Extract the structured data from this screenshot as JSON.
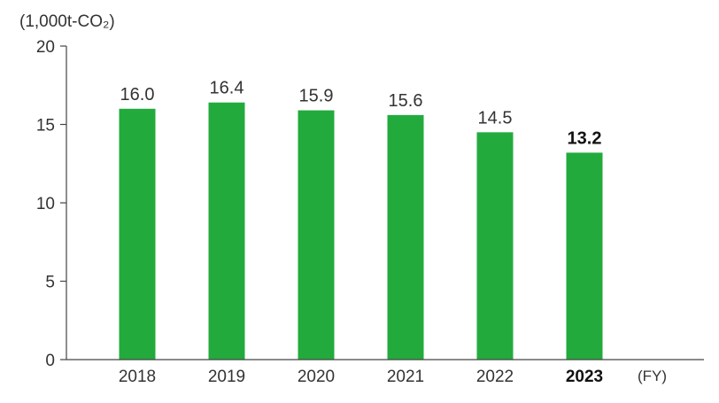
{
  "chart_data": {
    "type": "bar",
    "title": "",
    "unit_label": "(1,000t-CO₂)",
    "xlabel": "(FY)",
    "ylabel": "",
    "categories": [
      "2018",
      "2019",
      "2020",
      "2021",
      "2022",
      "2023"
    ],
    "values": [
      16.0,
      16.4,
      15.9,
      15.6,
      14.5,
      13.2
    ],
    "value_labels": [
      "16.0",
      "16.4",
      "15.9",
      "15.6",
      "14.5",
      "13.2"
    ],
    "highlighted_category": "2023",
    "ylim": [
      0,
      20
    ],
    "yticks": [
      0,
      5,
      10,
      15,
      20
    ],
    "bar_color": "#22ab3c",
    "grid": false,
    "legend": "none"
  }
}
